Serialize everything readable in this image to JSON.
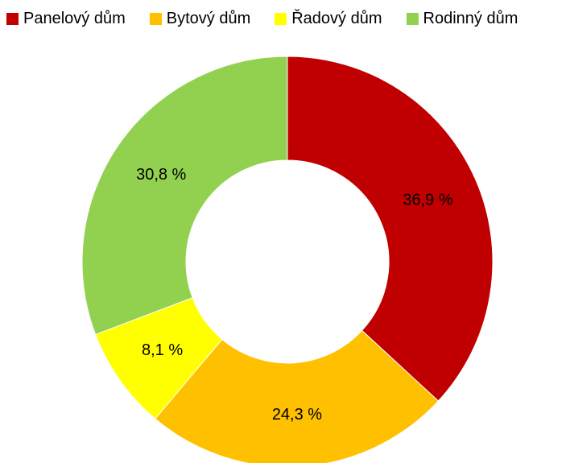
{
  "chart_data": {
    "type": "pie",
    "subtype": "donut",
    "categories": [
      "Panelový dům",
      "Bytový dům",
      "Řadový dům",
      "Rodinný dům"
    ],
    "values": [
      36.9,
      24.3,
      8.1,
      30.8
    ],
    "value_labels": [
      "36,9 %",
      "24,3 %",
      "8,1 %",
      "30,8 %"
    ],
    "colors": [
      "#C00000",
      "#FFC000",
      "#FFFF00",
      "#92D050"
    ],
    "legend_position": "top",
    "title": ""
  }
}
